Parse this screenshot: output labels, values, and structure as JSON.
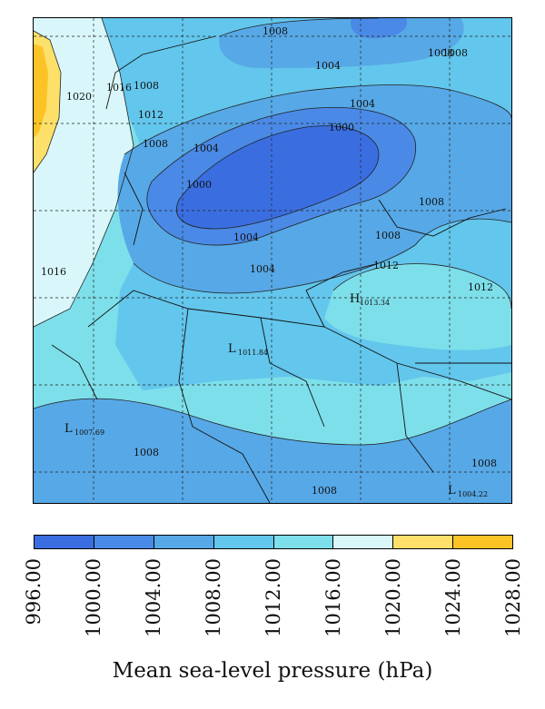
{
  "map": {
    "colors": {
      "c996": "#3a6ee0",
      "c1000": "#4a8ae6",
      "c1004": "#57a8e6",
      "c1008": "#63c6ec",
      "c1012": "#7ddfea",
      "c1016": "#d9f7fb",
      "c1020": "#fce06a",
      "c1024": "#fcc326"
    },
    "contour_labels": [
      "1008",
      "1004",
      "1008",
      "1004",
      "1000",
      "1004",
      "1000",
      "1004",
      "1008",
      "1012",
      "1016",
      "1020",
      "1016",
      "1012",
      "1008",
      "1004",
      "1008",
      "1012",
      "1008",
      "1008",
      "1008",
      "1008",
      "1008"
    ],
    "pressure_centers": [
      {
        "letter": "H",
        "value": "1013.34"
      },
      {
        "letter": "L",
        "value": "1011.84"
      },
      {
        "letter": "L",
        "value": "1007.69"
      },
      {
        "letter": "L",
        "value": "1004.22"
      }
    ]
  },
  "colorbar": {
    "colors": [
      "#3a6ee0",
      "#4a8ae6",
      "#57a8e6",
      "#63c6ec",
      "#7ddfea",
      "#d9f7fb",
      "#fce06a",
      "#fcc326"
    ],
    "ticks": [
      "996.00",
      "1000.00",
      "1004.00",
      "1008.00",
      "1012.00",
      "1016.00",
      "1020.00",
      "1024.00",
      "1028.00"
    ],
    "title": "Mean sea-level pressure (hPa)"
  }
}
